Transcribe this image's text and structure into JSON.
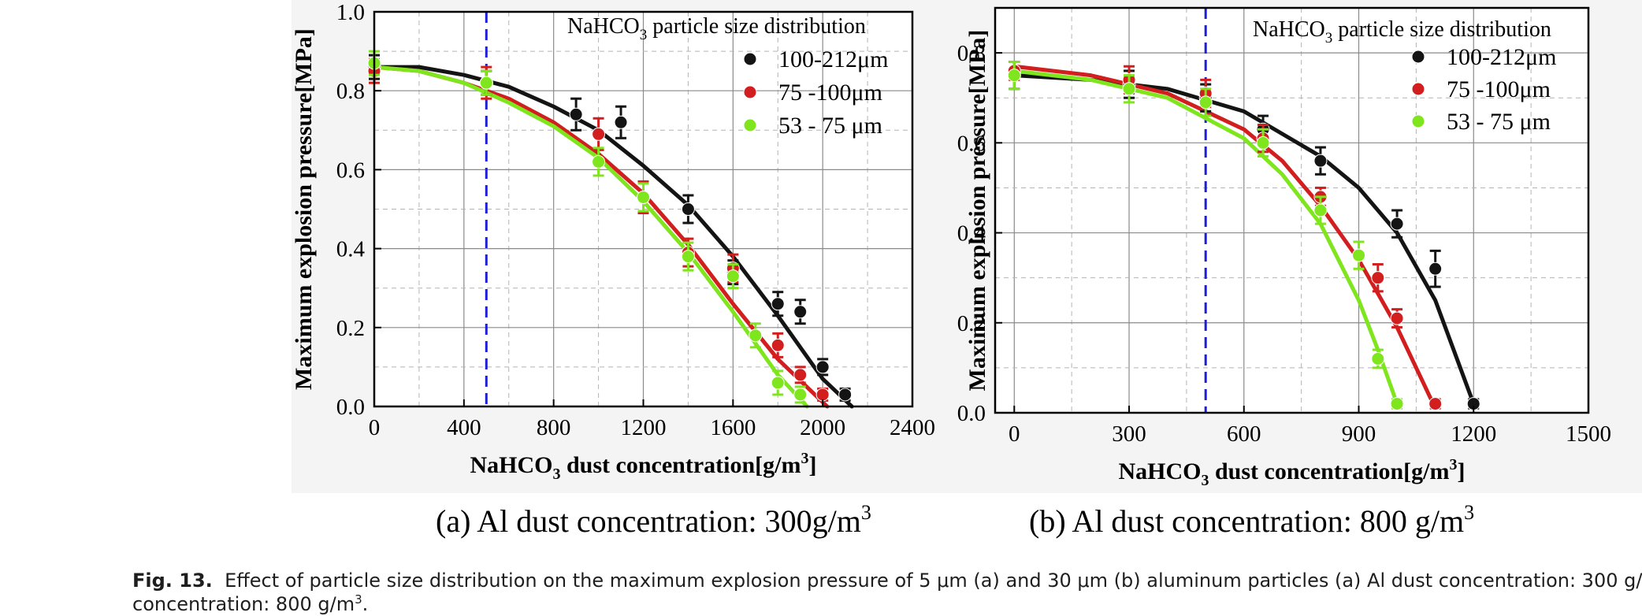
{
  "figure": {
    "caption_label": "Fig. 13.",
    "caption_line1": "Effect of particle size distribution on the maximum explosion pressure of 5 μm (a) and 30 μm (b) aluminum particles (a) Al dust concentration: 300 g/",
    "caption_line2_pre": "concentration: 800 g/m",
    "caption_line2_sup": "3",
    "caption_line2_post": "."
  },
  "colors": {
    "black": "#141414",
    "red": "#d21e1e",
    "green": "#7fe51c",
    "marker_line": "#1e1ed8"
  },
  "chart_data": [
    {
      "type": "scatter",
      "panel_label": "(a) Al dust concentration: 300g/m",
      "panel_label_sup": "3",
      "xlabel_pre": "NaHCO",
      "xlabel_sub": "3",
      "xlabel_post": " dust concentration[g/m",
      "xlabel_sup": "3",
      "xlabel_end": "]",
      "ylabel": "Maximum explosion pressure[MPa]",
      "legend_title_pre": "NaHCO",
      "legend_title_sub": "3",
      "legend_title_post": " particle size distribution",
      "legend_position": "top-right",
      "xlim": [
        0,
        2400
      ],
      "ylim": [
        0,
        1.0
      ],
      "xticks": [
        0,
        400,
        800,
        1200,
        1600,
        2000,
        2400
      ],
      "yticks": [
        0.0,
        0.2,
        0.4,
        0.6,
        0.8,
        1.0
      ],
      "xtick_labels": [
        "0",
        "400",
        "800",
        "1200",
        "1600",
        "2000",
        "2400"
      ],
      "ytick_labels": [
        "0.0",
        "0.2",
        "0.4",
        "0.6",
        "0.8",
        "1.0"
      ],
      "grid": true,
      "vertical_marker_x": 500,
      "series": [
        {
          "name": "100-212μm",
          "color": "#141414",
          "x": [
            0,
            500,
            900,
            1100,
            1400,
            1600,
            1800,
            1900,
            2000,
            2100
          ],
          "y": [
            0.86,
            0.82,
            0.74,
            0.72,
            0.5,
            0.34,
            0.26,
            0.24,
            0.1,
            0.03
          ],
          "err": [
            0.03,
            0.03,
            0.04,
            0.04,
            0.035,
            0.03,
            0.03,
            0.03,
            0.02,
            0.015
          ],
          "fit_x": [
            0,
            200,
            400,
            600,
            800,
            1000,
            1200,
            1400,
            1600,
            1800,
            2000,
            2130
          ],
          "fit_y": [
            0.86,
            0.86,
            0.84,
            0.81,
            0.76,
            0.7,
            0.61,
            0.51,
            0.38,
            0.23,
            0.07,
            0.0
          ]
        },
        {
          "name": "75 -100μm",
          "color": "#d21e1e",
          "x": [
            0,
            500,
            1000,
            1200,
            1400,
            1600,
            1800,
            1900,
            2000
          ],
          "y": [
            0.85,
            0.82,
            0.69,
            0.53,
            0.39,
            0.35,
            0.155,
            0.08,
            0.03
          ],
          "err": [
            0.03,
            0.04,
            0.04,
            0.04,
            0.035,
            0.035,
            0.03,
            0.02,
            0.015
          ],
          "fit_x": [
            0,
            200,
            400,
            600,
            800,
            1000,
            1200,
            1400,
            1600,
            1800,
            2020
          ],
          "fit_y": [
            0.86,
            0.85,
            0.82,
            0.78,
            0.72,
            0.64,
            0.54,
            0.41,
            0.26,
            0.12,
            0.0
          ]
        },
        {
          "name": "53 - 75 μm",
          "color": "#7fe51c",
          "x": [
            0,
            500,
            1000,
            1200,
            1400,
            1600,
            1700,
            1800,
            1900
          ],
          "y": [
            0.87,
            0.82,
            0.62,
            0.53,
            0.38,
            0.33,
            0.18,
            0.06,
            0.03
          ],
          "err": [
            0.03,
            0.03,
            0.035,
            0.035,
            0.035,
            0.03,
            0.03,
            0.03,
            0.02
          ],
          "fit_x": [
            0,
            200,
            400,
            600,
            800,
            1000,
            1200,
            1400,
            1600,
            1800,
            1930
          ],
          "fit_y": [
            0.86,
            0.85,
            0.82,
            0.77,
            0.71,
            0.63,
            0.52,
            0.39,
            0.24,
            0.08,
            0.0
          ]
        }
      ]
    },
    {
      "type": "scatter",
      "panel_label": "(b) Al dust concentration: 800 g/m",
      "panel_label_sup": "3",
      "xlabel_pre": "NaHCO",
      "xlabel_sub": "3",
      "xlabel_post": " dust concentration[g/m",
      "xlabel_sup": "3",
      "xlabel_end": "]",
      "ylabel": "Maximum explosion pressure[MPa]",
      "legend_title_pre": "NaHCO",
      "legend_title_sub": "3",
      "legend_title_post": " particle size distribution",
      "legend_position": "top-right",
      "xlim": [
        -50,
        1500
      ],
      "ylim": [
        0,
        0.9
      ],
      "xticks": [
        0,
        300,
        600,
        900,
        1200,
        1500
      ],
      "yticks": [
        0.0,
        0.2,
        0.4,
        0.6,
        0.8
      ],
      "xtick_labels": [
        "0",
        "300",
        "600",
        "900",
        "1200",
        "1500"
      ],
      "ytick_labels": [
        "0.0",
        "0.2",
        "0.4",
        "0.6",
        "0.8"
      ],
      "grid": true,
      "vertical_marker_x": 500,
      "series": [
        {
          "name": "100-212μm",
          "color": "#141414",
          "x": [
            0,
            300,
            500,
            650,
            800,
            1000,
            1100,
            1200
          ],
          "y": [
            0.75,
            0.73,
            0.7,
            0.63,
            0.56,
            0.42,
            0.32,
            0.02
          ],
          "err": [
            0.03,
            0.03,
            0.03,
            0.03,
            0.03,
            0.03,
            0.04,
            0.01
          ],
          "fit_x": [
            0,
            200,
            400,
            600,
            800,
            900,
            1000,
            1100,
            1200
          ],
          "fit_y": [
            0.75,
            0.74,
            0.72,
            0.67,
            0.57,
            0.5,
            0.4,
            0.25,
            0.02
          ]
        },
        {
          "name": "75 -100μm",
          "color": "#d21e1e",
          "x": [
            0,
            300,
            500,
            650,
            800,
            950,
            1000,
            1100
          ],
          "y": [
            0.76,
            0.74,
            0.71,
            0.61,
            0.48,
            0.3,
            0.21,
            0.02
          ],
          "err": [
            0.02,
            0.03,
            0.03,
            0.03,
            0.02,
            0.03,
            0.02,
            0.01
          ],
          "fit_x": [
            0,
            200,
            400,
            600,
            700,
            800,
            900,
            1000,
            1100
          ],
          "fit_y": [
            0.77,
            0.75,
            0.71,
            0.63,
            0.56,
            0.46,
            0.34,
            0.19,
            0.01
          ]
        },
        {
          "name": "53 - 75 μm",
          "color": "#7fe51c",
          "x": [
            0,
            300,
            500,
            650,
            800,
            900,
            950,
            1000
          ],
          "y": [
            0.75,
            0.72,
            0.69,
            0.6,
            0.45,
            0.35,
            0.12,
            0.02
          ],
          "err": [
            0.03,
            0.03,
            0.03,
            0.03,
            0.03,
            0.03,
            0.02,
            0.01
          ],
          "fit_x": [
            0,
            200,
            400,
            600,
            700,
            800,
            900,
            950,
            1000
          ],
          "fit_y": [
            0.76,
            0.74,
            0.7,
            0.61,
            0.53,
            0.42,
            0.25,
            0.14,
            0.02
          ]
        }
      ]
    }
  ]
}
